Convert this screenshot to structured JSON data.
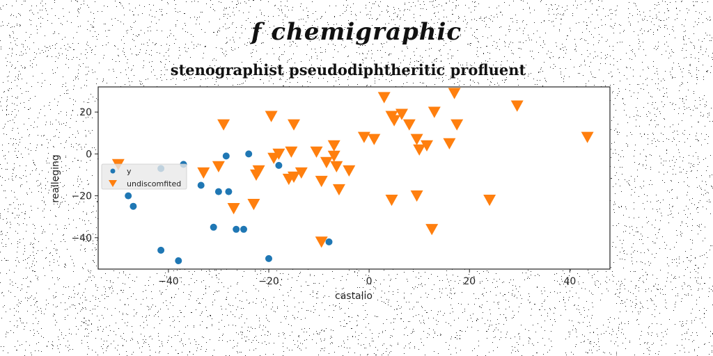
{
  "suptitle": "f chemigraphic",
  "chart_data": {
    "type": "scatter",
    "title": "stenographist pseudodiphtheritic profluent",
    "xlabel": "castalio",
    "ylabel": "realleging",
    "xlim": [
      -54,
      48
    ],
    "ylim": [
      -55,
      32
    ],
    "xticks": [
      -40,
      -20,
      0,
      20,
      40
    ],
    "yticks": [
      -40,
      -20,
      0,
      20
    ],
    "xtick_labels": [
      "−40",
      "−20",
      "0",
      "20",
      "40"
    ],
    "ytick_labels": [
      "−40",
      "−20",
      "0",
      "20"
    ],
    "grid": false,
    "legend_position": "center-left",
    "series": [
      {
        "name": "y",
        "marker": "circle",
        "color": "#1f77b4",
        "points": [
          [
            -48,
            -20
          ],
          [
            -47,
            -25
          ],
          [
            -41.5,
            -7
          ],
          [
            -41.5,
            -46
          ],
          [
            -38,
            -51
          ],
          [
            -37,
            -5
          ],
          [
            -33.5,
            -15
          ],
          [
            -31,
            -35
          ],
          [
            -30,
            -18
          ],
          [
            -28.5,
            -1
          ],
          [
            -28,
            -18
          ],
          [
            -26.5,
            -36
          ],
          [
            -25,
            -36
          ],
          [
            -24,
            0
          ],
          [
            -20,
            -50
          ],
          [
            -18,
            -5.5
          ],
          [
            -8,
            -42
          ]
        ]
      },
      {
        "name": "undiscomfited",
        "marker": "triangle-down",
        "color": "#ff7f0e",
        "points": [
          [
            -50,
            -5
          ],
          [
            -33,
            -9
          ],
          [
            -30,
            -6
          ],
          [
            -29,
            14
          ],
          [
            -27,
            -26
          ],
          [
            -23,
            -24
          ],
          [
            -22.5,
            -10
          ],
          [
            -22,
            -8
          ],
          [
            -19.5,
            18
          ],
          [
            -19,
            -2
          ],
          [
            -18,
            0
          ],
          [
            -16,
            -12
          ],
          [
            -15.5,
            1
          ],
          [
            -15,
            14
          ],
          [
            -15,
            -11
          ],
          [
            -13.5,
            -9
          ],
          [
            -10.5,
            1
          ],
          [
            -9.5,
            -13
          ],
          [
            -9.5,
            -42
          ],
          [
            -8.5,
            -4
          ],
          [
            -7,
            4
          ],
          [
            -7,
            -1
          ],
          [
            -6.5,
            -6
          ],
          [
            -6,
            -17
          ],
          [
            -4,
            -8
          ],
          [
            -1,
            8
          ],
          [
            1,
            7
          ],
          [
            3,
            27
          ],
          [
            4.5,
            -22
          ],
          [
            4.5,
            18
          ],
          [
            5,
            16
          ],
          [
            6.5,
            19
          ],
          [
            8,
            14
          ],
          [
            9.5,
            -20
          ],
          [
            9.5,
            7
          ],
          [
            10,
            2
          ],
          [
            11.5,
            4
          ],
          [
            12.5,
            -36
          ],
          [
            13,
            20
          ],
          [
            16,
            5
          ],
          [
            17,
            29
          ],
          [
            17.5,
            14
          ],
          [
            24,
            -22
          ],
          [
            29.5,
            23
          ],
          [
            43.5,
            8
          ]
        ]
      }
    ]
  }
}
